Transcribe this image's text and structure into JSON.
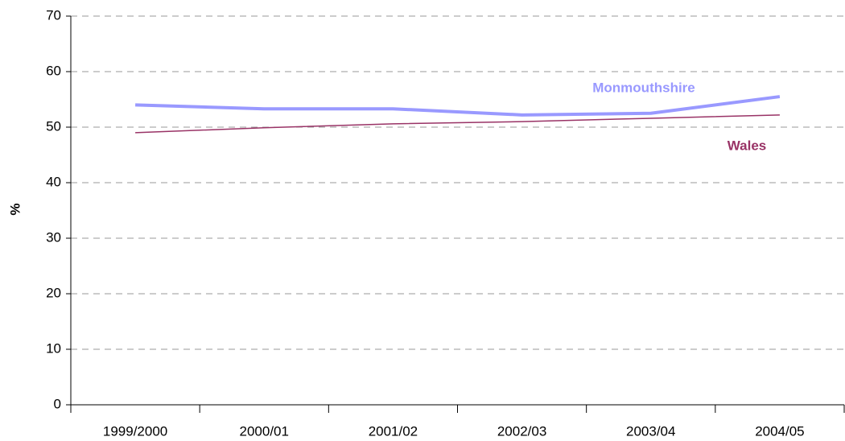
{
  "chart_data": {
    "type": "line",
    "y_label": "%",
    "categories": [
      "1999/2000",
      "2000/01",
      "2001/02",
      "2002/03",
      "2003/04",
      "2004/05"
    ],
    "series": [
      {
        "name": "Monmouthshire",
        "color": "#9999ff",
        "values": [
          54.0,
          53.3,
          53.3,
          52.2,
          52.5,
          55.5
        ]
      },
      {
        "name": "Wales",
        "color": "#993366",
        "values": [
          49.0,
          49.9,
          50.6,
          51.0,
          51.6,
          52.2
        ]
      }
    ],
    "ylim": [
      0,
      70
    ],
    "yticks": [
      0,
      10,
      20,
      30,
      40,
      50,
      60,
      70
    ],
    "grid": true
  }
}
